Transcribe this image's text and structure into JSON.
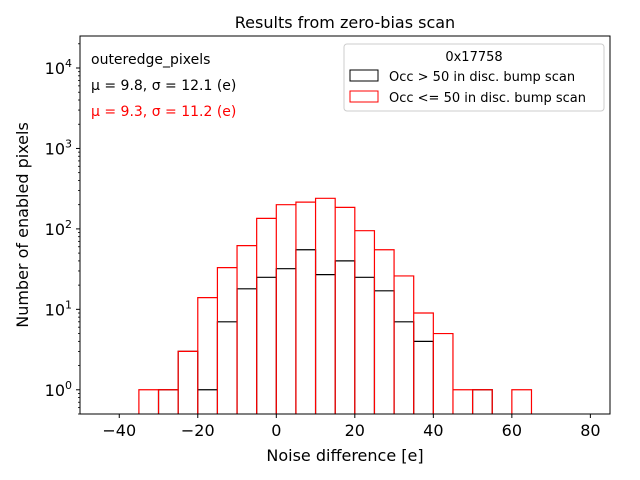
{
  "chart_data": {
    "type": "histogram",
    "title": "Results from zero-bias scan",
    "xlabel": "Noise difference [e]",
    "ylabel": "Number of enabled pixels",
    "xlim": [
      -50,
      85
    ],
    "ylim": [
      0.5,
      25000
    ],
    "yscale": "log",
    "xticks": [
      -40,
      -20,
      0,
      20,
      40,
      60,
      80
    ],
    "xtick_labels": [
      "−40",
      "−20",
      "0",
      "20",
      "40",
      "60",
      "80"
    ],
    "yticks": [
      {
        "value": 1,
        "base": "10",
        "exp": "0"
      },
      {
        "value": 10,
        "base": "10",
        "exp": "1"
      },
      {
        "value": 100,
        "base": "10",
        "exp": "2"
      },
      {
        "value": 1000,
        "base": "10",
        "exp": "3"
      },
      {
        "value": 10000,
        "base": "10",
        "exp": "4"
      }
    ],
    "bin_edges": [
      -35,
      -30,
      -25,
      -20,
      -15,
      -10,
      -5,
      0,
      5,
      10,
      15,
      20,
      25,
      30,
      35,
      40,
      45,
      50,
      55,
      60,
      65,
      70
    ],
    "annotations": {
      "label": "outeredge_pixels",
      "stats": [
        {
          "text": "μ = 9.8, σ = 12.1 (e)",
          "color": "#000000"
        },
        {
          "text": "μ = 9.3, σ = 11.2 (e)",
          "color": "#ff0000"
        }
      ]
    },
    "legend": {
      "title": "0x17758",
      "location": "upper right"
    },
    "series": [
      {
        "name": "Occ > 50 in disc. bump scan",
        "color": "#000000",
        "values": [
          0,
          1,
          3,
          1,
          7,
          18,
          25,
          32,
          55,
          27,
          40,
          25,
          17,
          7,
          4,
          0,
          0,
          1,
          0,
          0,
          0
        ]
      },
      {
        "name": "Occ <= 50 in disc. bump scan",
        "color": "#ff0000",
        "values": [
          1,
          1,
          3,
          14,
          33,
          62,
          135,
          200,
          215,
          240,
          185,
          95,
          55,
          26,
          9,
          5,
          1,
          1,
          0,
          1,
          0
        ]
      }
    ]
  }
}
